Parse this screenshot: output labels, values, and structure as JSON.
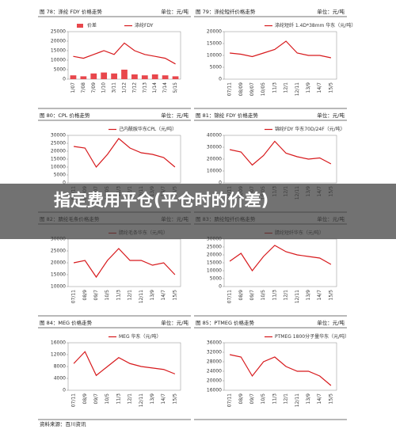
{
  "chart_data": [
    {
      "type": "line",
      "title": "图 78：涤纶 FDY 价格走势",
      "unit": "单位：元/吨",
      "categories": [
        "1/07",
        "7/08",
        "7/09",
        "1/10",
        "3/11",
        "1/12",
        "7/12",
        "7/13",
        "1/14",
        "7/14",
        "5/15"
      ],
      "series": [
        {
          "name": "价差",
          "type": "bar",
          "color": "#e8474c",
          "values": [
            2000,
            1500,
            3000,
            3500,
            3000,
            5000,
            2500,
            2000,
            2500,
            2000,
            1500
          ]
        },
        {
          "name": "涤纶FDY",
          "color": "#d7191c",
          "values": [
            12000,
            11000,
            13000,
            15000,
            13000,
            19000,
            15000,
            13000,
            12000,
            11000,
            8000
          ]
        }
      ],
      "ylim": [
        0,
        25000
      ],
      "yticks": [
        0,
        5000,
        10000,
        15000,
        20000,
        25000
      ]
    },
    {
      "type": "line",
      "title": "图 79：涤纶短纤价格走势",
      "unit": "单位：元/吨",
      "categories": [
        "07/11",
        "08/09",
        "09/07",
        "10/05",
        "11/3",
        "12/1",
        "12/11",
        "13/9",
        "14/7",
        "15/5"
      ],
      "series": [
        {
          "name": "涤纶短纤 1.4D*38mm 华东（元/吨）",
          "color": "#d7191c",
          "values": [
            11000,
            10500,
            9500,
            11000,
            12500,
            16000,
            11000,
            10000,
            10000,
            9000
          ]
        }
      ],
      "ylim": [
        0,
        20000
      ],
      "yticks": [
        0,
        5000,
        10000,
        15000,
        20000
      ]
    },
    {
      "type": "line",
      "title": "图 80：CPL 价格走势",
      "unit": "单位：元/吨",
      "categories": [
        "07/11",
        "08/09",
        "09/07",
        "10/05",
        "11/3",
        "12/1",
        "12/11",
        "13/9",
        "14/7",
        "15/5"
      ],
      "series": [
        {
          "name": "己内酰胺华东CPL（元/吨）",
          "color": "#d7191c",
          "values": [
            23000,
            22000,
            10000,
            18000,
            28000,
            22000,
            19000,
            18000,
            16000,
            10000
          ]
        }
      ],
      "ylim": [
        0,
        30000
      ],
      "yticks": [
        0,
        5000,
        10000,
        15000,
        20000,
        25000,
        30000
      ]
    },
    {
      "type": "line",
      "title": "图 81：锦纶 FDY 价格走势",
      "unit": "单位：元/吨",
      "categories": [
        "07/11",
        "08/09",
        "09/07",
        "10/05",
        "11/3",
        "12/1",
        "12/11",
        "13/9",
        "14/7",
        "15/5"
      ],
      "series": [
        {
          "name": "锦纶FDY 华东70D/24F（元/吨）",
          "color": "#d7191c",
          "values": [
            28000,
            26000,
            15000,
            23000,
            35000,
            25000,
            22000,
            20000,
            21000,
            16000
          ]
        }
      ],
      "ylim": [
        0,
        40000
      ],
      "yticks": [
        0,
        10000,
        20000,
        30000,
        40000
      ]
    },
    {
      "type": "line",
      "title": "图 82：腈纶毛条价格走势",
      "unit": "单位：元/吨",
      "categories": [
        "07/11",
        "08/9",
        "09/7",
        "10/5",
        "11/3",
        "12/1",
        "12/11",
        "13/9",
        "14/7",
        "15/5"
      ],
      "series": [
        {
          "name": "腈纶毛条华东（元/吨）",
          "color": "#d7191c",
          "values": [
            20000,
            21000,
            14000,
            21000,
            26000,
            21000,
            21000,
            19000,
            20000,
            15000
          ]
        }
      ],
      "ylim": [
        10000,
        30000
      ],
      "yticks": [
        10000,
        15000,
        20000,
        25000,
        30000
      ]
    },
    {
      "type": "line",
      "title": "图 83：腈纶短纤价格走势",
      "unit": "单位：元/吨",
      "categories": [
        "07/11",
        "08/9",
        "09/7",
        "10/5",
        "11/3",
        "12/1",
        "12/11",
        "13/9",
        "14/7",
        "15/5"
      ],
      "series": [
        {
          "name": "腈纶短纤华东（元/吨）",
          "color": "#d7191c",
          "values": [
            16000,
            21000,
            10000,
            19000,
            26000,
            22000,
            20000,
            19000,
            18000,
            14000
          ]
        }
      ],
      "ylim": [
        0,
        30000
      ],
      "yticks": [
        0,
        5000,
        10000,
        15000,
        20000,
        25000,
        30000
      ]
    },
    {
      "type": "line",
      "title": "图 84：MEG 价格走势",
      "unit": "单位：元/吨",
      "categories": [
        "07/11",
        "08/9",
        "09/7",
        "10/5",
        "11/3",
        "12/1",
        "12/11",
        "13/9",
        "14/7",
        "15/5"
      ],
      "series": [
        {
          "name": "MEG 华东（元/吨）",
          "color": "#d7191c",
          "values": [
            9000,
            13000,
            5000,
            8000,
            11000,
            9000,
            8000,
            7500,
            7000,
            5500
          ]
        }
      ],
      "ylim": [
        0,
        16000
      ],
      "yticks": [
        0,
        4000,
        8000,
        12000,
        16000
      ]
    },
    {
      "type": "line",
      "title": "图 85：PTMEG 价格走势",
      "unit": "单位：元/吨",
      "categories": [
        "07/11",
        "08/9",
        "09/7",
        "10/5",
        "11/3",
        "12/1",
        "12/11",
        "13/9",
        "14/7",
        "15/5"
      ],
      "series": [
        {
          "name": "PTMEG 1800分子量华东（元/吨）",
          "color": "#d7191c",
          "values": [
            31000,
            30000,
            22000,
            28000,
            30000,
            26000,
            24000,
            24000,
            22000,
            18000
          ]
        }
      ],
      "ylim": [
        16000,
        36000
      ],
      "yticks": [
        16000,
        20000,
        24000,
        28000,
        32000,
        36000
      ]
    }
  ],
  "overlay_title": "指定费用平仓(平仓时的价差)",
  "source": "资料来源：百川资讯"
}
